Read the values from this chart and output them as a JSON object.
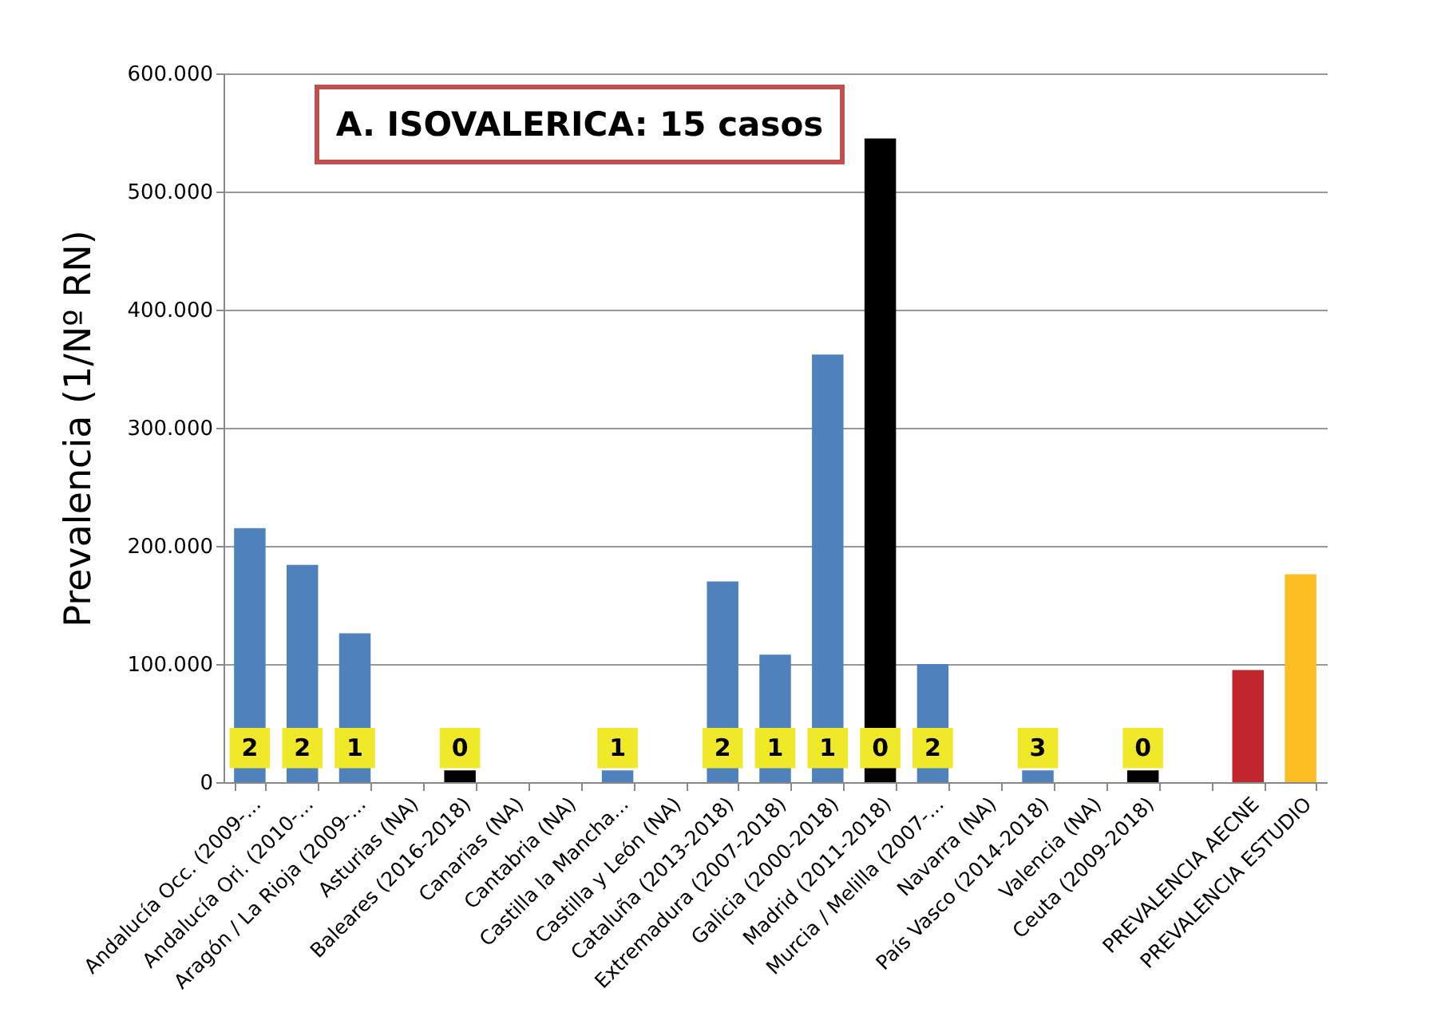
{
  "chart_data": {
    "type": "bar",
    "title": "A. ISOVALERICA: 15 casos",
    "ylabel": "Prevalencia (1/Nº RN)",
    "categories": [
      "Andalucía Occ. (2009-...",
      "Andalucía Ori. (2010-...",
      "Aragón / La Rioja (2009-...",
      "Asturias (NA)",
      "Baleares (2016-2018)",
      "Canarias (NA)",
      "Cantabria (NA)",
      "Castilla la Mancha...",
      "Castilla y León (NA)",
      "Cataluña (2013-2018)",
      "Extremadura (2007-2018)",
      "Galicia (2000-2018)",
      "Madrid (2011-2018)",
      "Murcia / Melilla (2007-...",
      "Navarra (NA)",
      "País Vasco (2014-2018)",
      "Valencia (NA)",
      "Ceuta (2009-2018)",
      null,
      "PREVALENCIA AECNE",
      "PREVALENCIA ESTUDIO"
    ],
    "values": [
      215000,
      184000,
      126000,
      null,
      10000,
      null,
      null,
      10000,
      null,
      170000,
      108000,
      362000,
      545000,
      100000,
      null,
      10000,
      null,
      10000,
      null,
      95000,
      176000
    ],
    "colors": [
      "#4f81bd",
      "#4f81bd",
      "#4f81bd",
      "#4f81bd",
      "#000000",
      "#4f81bd",
      "#4f81bd",
      "#4f81bd",
      "#4f81bd",
      "#4f81bd",
      "#4f81bd",
      "#4f81bd",
      "#000000",
      "#4f81bd",
      "#4f81bd",
      "#4f81bd",
      "#4f81bd",
      "#000000",
      "#4f81bd",
      "#c0272d",
      "#fbbf24"
    ],
    "ylim": [
      0,
      600000
    ],
    "yticks": [
      {
        "value": 0,
        "label": "0"
      },
      {
        "value": 100000,
        "label": "100.000"
      },
      {
        "value": 200000,
        "label": "200.000"
      },
      {
        "value": 300000,
        "label": "300.000"
      },
      {
        "value": 400000,
        "label": "400.000"
      },
      {
        "value": 500000,
        "label": "500.000"
      },
      {
        "value": 600000,
        "label": "600.000"
      }
    ],
    "grid": "y",
    "annotations": [
      {
        "text": "2",
        "x": "Andalucía Occ. (2009-...",
        "y": 10000
      },
      {
        "text": "2",
        "x": "Andalucía Ori. (2010-...",
        "y": 10000
      },
      {
        "text": "1",
        "x": "Aragón / La Rioja (2009-...",
        "y": 10000
      },
      {
        "text": "0",
        "x": "Baleares (2016-2018)",
        "y": 10000
      },
      {
        "text": "1",
        "x": "Castilla la Mancha...",
        "y": 10000
      },
      {
        "text": "2",
        "x": "Cataluña (2013-2018)",
        "y": 10000
      },
      {
        "text": "1",
        "x": "Extremadura (2007-2018)",
        "y": 10000
      },
      {
        "text": "1",
        "x": "Galicia (2000-2018)",
        "y": 10000
      },
      {
        "text": "0",
        "x": "Madrid (2011-2018)",
        "y": 10000
      },
      {
        "text": "2",
        "x": "Murcia / Melilla (2007-...",
        "y": 10000
      },
      {
        "text": "3",
        "x": "País Vasco (2014-2018)",
        "y": 10000
      },
      {
        "text": "0",
        "x": "Ceuta (2009-2018)",
        "y": 10000
      }
    ]
  }
}
